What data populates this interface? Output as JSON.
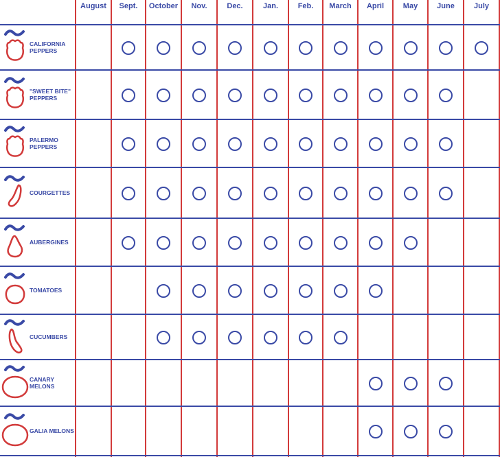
{
  "months": [
    "August",
    "Sept.",
    "October",
    "Nov.",
    "Dec.",
    "Jan.",
    "Feb.",
    "March",
    "April",
    "May",
    "June",
    "July"
  ],
  "colors": {
    "grid_vertical": "#d23a3a",
    "grid_horizontal": "#3a4aa6",
    "text": "#3a4aa6",
    "icon_outline": "#d23a3a",
    "wave": "#3a4aa6"
  },
  "rows": [
    {
      "label": "California Peppers",
      "icon": "pepper-icon",
      "months": [
        0,
        1,
        1,
        1,
        1,
        1,
        1,
        1,
        1,
        1,
        1,
        1
      ]
    },
    {
      "label": "\"Sweet Bite\" Peppers",
      "icon": "pepper-icon",
      "months": [
        0,
        1,
        1,
        1,
        1,
        1,
        1,
        1,
        1,
        1,
        1,
        0
      ]
    },
    {
      "label": "Palermo Peppers",
      "icon": "pepper-icon",
      "months": [
        0,
        1,
        1,
        1,
        1,
        1,
        1,
        1,
        1,
        1,
        1,
        0
      ]
    },
    {
      "label": "Courgettes",
      "icon": "courgette-icon",
      "months": [
        0,
        1,
        1,
        1,
        1,
        1,
        1,
        1,
        1,
        1,
        1,
        0
      ]
    },
    {
      "label": "Aubergines",
      "icon": "aubergine-icon",
      "months": [
        0,
        1,
        1,
        1,
        1,
        1,
        1,
        1,
        1,
        1,
        0,
        0
      ]
    },
    {
      "label": "Tomatoes",
      "icon": "tomato-icon",
      "months": [
        0,
        0,
        1,
        1,
        1,
        1,
        1,
        1,
        1,
        0,
        0,
        0
      ]
    },
    {
      "label": "Cucumbers",
      "icon": "cucumber-icon",
      "months": [
        0,
        0,
        1,
        1,
        1,
        1,
        1,
        1,
        0,
        0,
        0,
        0
      ]
    },
    {
      "label": "Canary Melons",
      "icon": "melon-icon",
      "months": [
        0,
        0,
        0,
        0,
        0,
        0,
        0,
        0,
        1,
        1,
        1,
        0
      ]
    },
    {
      "label": "Galia Melons",
      "icon": "melon-icon",
      "months": [
        0,
        0,
        0,
        0,
        0,
        0,
        0,
        0,
        1,
        1,
        1,
        0
      ]
    }
  ]
}
